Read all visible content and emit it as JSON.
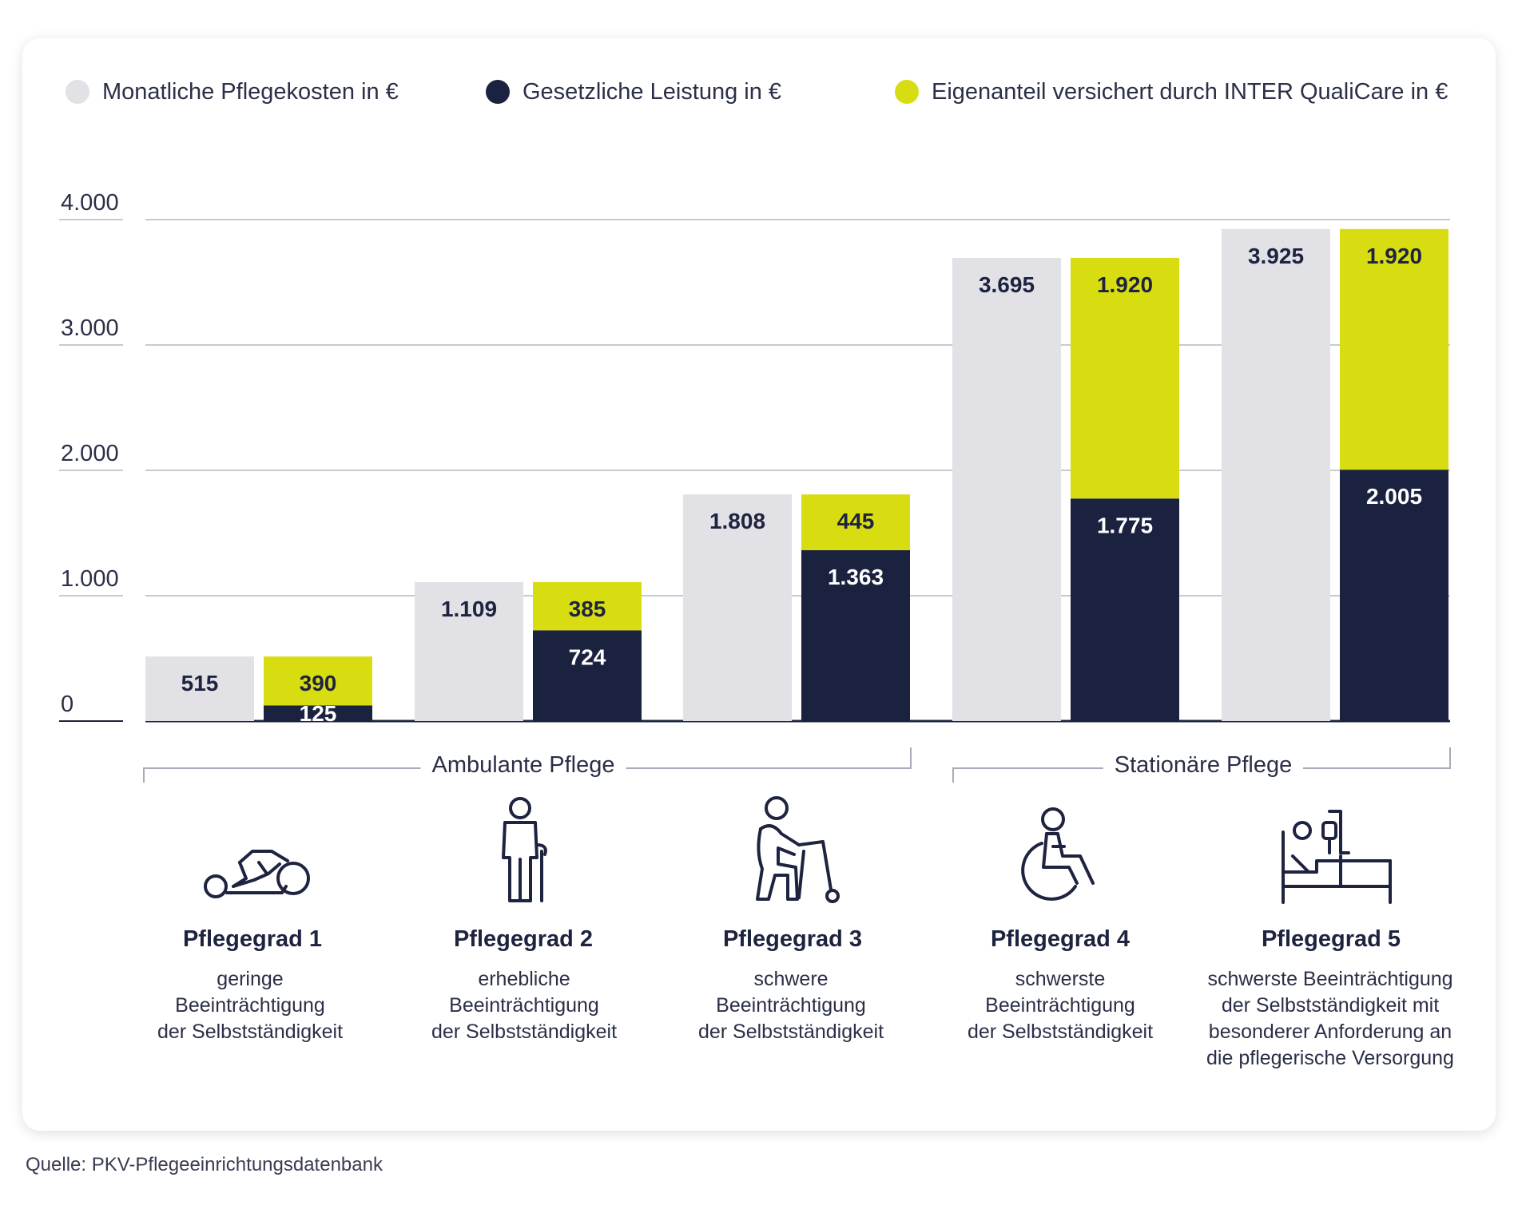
{
  "legend": [
    {
      "label": "Monatliche Pflegekosten in €",
      "color": "#e1e1e6"
    },
    {
      "label": "Gesetzliche Leistung in €",
      "color": "#1b2240"
    },
    {
      "label": "Eigenanteil versichert durch INTER QualiCare in €",
      "color": "#d8dd12"
    }
  ],
  "chart_data": {
    "type": "bar",
    "ylim": [
      0,
      4000
    ],
    "yticks": [
      {
        "value": 0,
        "label": "0"
      },
      {
        "value": 1000,
        "label": "1.000"
      },
      {
        "value": 2000,
        "label": "2.000"
      },
      {
        "value": 3000,
        "label": "3.000"
      },
      {
        "value": 4000,
        "label": "4.000"
      }
    ],
    "grid": true,
    "legend_position": "top",
    "categories": [
      "Pflegegrad 1",
      "Pflegegrad 2",
      "Pflegegrad 3",
      "Pflegegrad 4",
      "Pflegegrad 5"
    ],
    "series": [
      {
        "name": "Monatliche Pflegekosten in €",
        "color": "#e1e1e6",
        "values": [
          515,
          1109,
          1808,
          3695,
          3925
        ],
        "labels": [
          "515",
          "1.109",
          "1.808",
          "3.695",
          "3.925"
        ]
      },
      {
        "name": "Gesetzliche Leistung in €",
        "color": "#1b2240",
        "values": [
          125,
          724,
          1363,
          1775,
          2005
        ],
        "labels": [
          "125",
          "724",
          "1.363",
          "1.775",
          "2.005"
        ]
      },
      {
        "name": "Eigenanteil versichert durch INTER QualiCare in €",
        "color": "#d8dd12",
        "values": [
          390,
          385,
          445,
          1920,
          1920
        ],
        "labels": [
          "390",
          "385",
          "445",
          "1.920",
          "1.920"
        ]
      }
    ],
    "groups": [
      {
        "label": "Ambulante Pflege",
        "categories": [
          0,
          1,
          2
        ]
      },
      {
        "label": "Stationäre Pflege",
        "categories": [
          3,
          4
        ]
      }
    ]
  },
  "categories_info": [
    {
      "title": "Pflegegrad 1",
      "description": "geringe\nBeeinträchtigung\nder Selbstständigkeit",
      "icon": "lying-person-icon"
    },
    {
      "title": "Pflegegrad 2",
      "description": "erhebliche\nBeeinträchtigung\nder Selbstständigkeit",
      "icon": "person-with-cane-icon"
    },
    {
      "title": "Pflegegrad 3",
      "description": "schwere\nBeeinträchtigung\nder Selbstständigkeit",
      "icon": "person-with-walker-icon"
    },
    {
      "title": "Pflegegrad 4",
      "description": "schwerste\nBeeinträchtigung\nder Selbstständigkeit",
      "icon": "wheelchair-icon"
    },
    {
      "title": "Pflegegrad 5",
      "description": "schwerste Beeinträchtigung\nder Selbstständigkeit mit\nbesonderer Anforderung an\ndie pflegerische Versorgung",
      "icon": "hospital-bed-icon"
    }
  ],
  "source": "Quelle: PKV-Pflegeeinrichtungsdatenbank"
}
